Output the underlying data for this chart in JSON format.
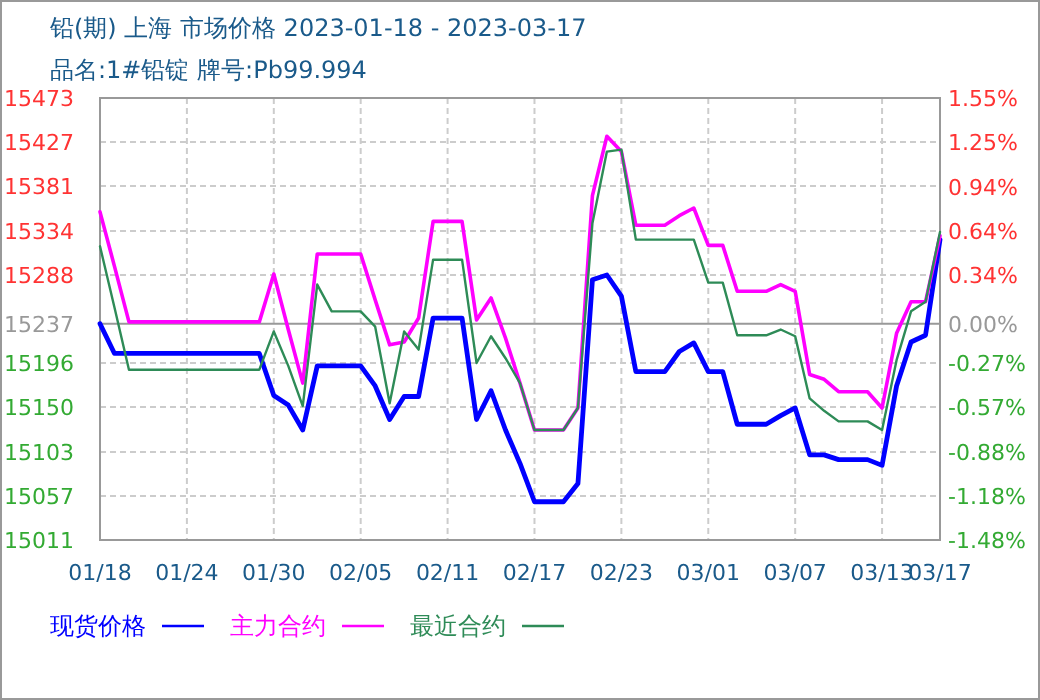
{
  "chart_data": {
    "type": "line",
    "title": "铅(期) 上海 市场价格 2023-01-18 - 2023-03-17",
    "subtitle": "品名:1#铅锭 牌号:Pb99.994",
    "x": [
      "2023-01-18",
      "2023-01-19",
      "2023-01-20",
      "2023-01-29",
      "2023-01-30",
      "2023-01-31",
      "2023-02-01",
      "2023-02-02",
      "2023-02-03",
      "2023-02-05",
      "2023-02-06",
      "2023-02-07",
      "2023-02-08",
      "2023-02-09",
      "2023-02-10",
      "2023-02-12",
      "2023-02-13",
      "2023-02-14",
      "2023-02-15",
      "2023-02-16",
      "2023-02-17",
      "2023-02-19",
      "2023-02-20",
      "2023-02-21",
      "2023-02-22",
      "2023-02-23",
      "2023-02-24",
      "2023-02-26",
      "2023-02-27",
      "2023-02-28",
      "2023-03-01",
      "2023-03-02",
      "2023-03-03",
      "2023-03-05",
      "2023-03-06",
      "2023-03-07",
      "2023-03-08",
      "2023-03-09",
      "2023-03-10",
      "2023-03-12",
      "2023-03-13",
      "2023-03-14",
      "2023-03-15",
      "2023-03-16",
      "2023-03-17"
    ],
    "series": [
      {
        "name": "现货价格",
        "color": "#0000ff",
        "values": [
          15237,
          15206,
          15206,
          15206,
          15162,
          15152,
          15126,
          15193,
          15193,
          15193,
          15172,
          15137,
          15161,
          15161,
          15243,
          15243,
          15137,
          15167,
          15126,
          15091,
          15051,
          15051,
          15070,
          15283,
          15288,
          15266,
          15187,
          15187,
          15208,
          15217,
          15187,
          15187,
          15132,
          15132,
          15141,
          15149,
          15100,
          15100,
          15095,
          15095,
          15089,
          15172,
          15218,
          15225,
          15325
        ]
      },
      {
        "name": "主力合约",
        "color": "#ff00ff",
        "values": [
          15354,
          15297,
          15239,
          15239,
          15289,
          15231,
          15175,
          15310,
          15310,
          15310,
          15262,
          15215,
          15218,
          15243,
          15344,
          15344,
          15241,
          15264,
          15222,
          15175,
          15126,
          15126,
          15149,
          15371,
          15433,
          15417,
          15340,
          15340,
          15350,
          15358,
          15319,
          15319,
          15271,
          15271,
          15278,
          15271,
          15184,
          15179,
          15166,
          15166,
          15149,
          15227,
          15260,
          15260,
          15329
        ]
      },
      {
        "name": "最近合约",
        "color": "#2e8b57",
        "values": [
          15318,
          15254,
          15189,
          15189,
          15229,
          15193,
          15151,
          15278,
          15250,
          15250,
          15234,
          15154,
          15229,
          15210,
          15304,
          15304,
          15196,
          15224,
          15201,
          15175,
          15126,
          15126,
          15149,
          15342,
          15417,
          15419,
          15325,
          15325,
          15325,
          15325,
          15280,
          15280,
          15225,
          15225,
          15231,
          15224,
          15159,
          15146,
          15135,
          15135,
          15126,
          15199,
          15250,
          15260,
          15333
        ]
      }
    ],
    "xlim": [
      "2023-01-18",
      "2023-03-17"
    ],
    "xticks": [
      {
        "value": "2023-01-18",
        "label": "01/18"
      },
      {
        "value": "2023-01-24",
        "label": "01/24"
      },
      {
        "value": "2023-01-30",
        "label": "01/30"
      },
      {
        "value": "2023-02-05",
        "label": "02/05"
      },
      {
        "value": "2023-02-11",
        "label": "02/11"
      },
      {
        "value": "2023-02-17",
        "label": "02/17"
      },
      {
        "value": "2023-02-23",
        "label": "02/23"
      },
      {
        "value": "2023-03-01",
        "label": "03/01"
      },
      {
        "value": "2023-03-07",
        "label": "03/07"
      },
      {
        "value": "2023-03-13",
        "label": "03/13"
      },
      {
        "value": "2023-03-17",
        "label": "03/17"
      }
    ],
    "ylim": [
      15011,
      15473
    ],
    "yticks": [
      15011,
      15057,
      15103,
      15150,
      15196,
      15237,
      15288,
      15334,
      15381,
      15427,
      15473
    ],
    "y2lim": [
      -1.48,
      1.55
    ],
    "y2ticks": [
      {
        "value": -1.48,
        "label": "-1.48%"
      },
      {
        "value": -1.18,
        "label": "-1.18%"
      },
      {
        "value": -0.88,
        "label": "-0.88%"
      },
      {
        "value": -0.57,
        "label": "-0.57%"
      },
      {
        "value": -0.27,
        "label": "-0.27%"
      },
      {
        "value": 0,
        "label": "0.00%"
      },
      {
        "value": 0.34,
        "label": "0.34%"
      },
      {
        "value": 0.64,
        "label": "0.64%"
      },
      {
        "value": 0.94,
        "label": "0.94%"
      },
      {
        "value": 1.25,
        "label": "1.25%"
      },
      {
        "value": 1.55,
        "label": "1.55%"
      }
    ],
    "ref_lines": [
      {
        "axis": "y",
        "value": 15237,
        "color": "#999999"
      }
    ],
    "grid": true,
    "legend": "bottom",
    "line_style": "solid"
  }
}
